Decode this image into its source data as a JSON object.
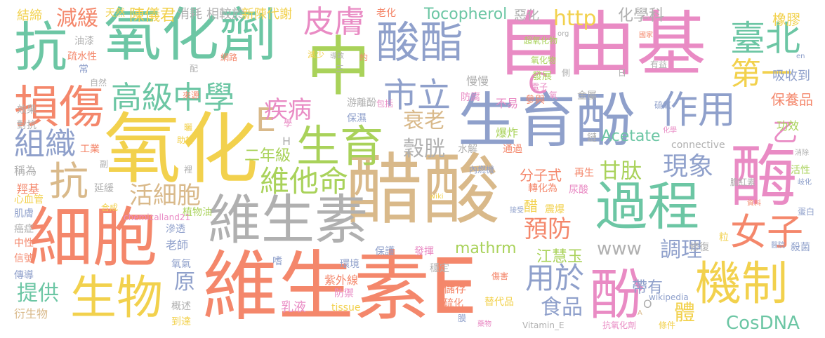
{
  "words": [
    {
      "text": "維生素E",
      "color": "#f4876b"
    },
    {
      "text": "醋酸",
      "color": "#d9b98a"
    },
    {
      "text": "自由基",
      "color": "#e98bc4"
    },
    {
      "text": "氧化",
      "color": "#f2d14d"
    },
    {
      "text": "氧化劑",
      "color": "#6cc6a4"
    },
    {
      "text": "抗",
      "color": "#6cc6a4"
    },
    {
      "text": "生育酚",
      "color": "#8fa0cb"
    },
    {
      "text": "細胞",
      "color": "#f4876b"
    },
    {
      "text": "中",
      "color": "#a9d25a"
    },
    {
      "text": "維生素",
      "color": "#b0b0b0"
    },
    {
      "text": "酶",
      "color": "#e98bc4"
    },
    {
      "text": "過程",
      "color": "#6cc6a4"
    },
    {
      "text": "酸酯",
      "color": "#8fa0cb"
    },
    {
      "text": "生物",
      "color": "#f2d14d"
    },
    {
      "text": "生育",
      "color": "#a9d25a"
    },
    {
      "text": "損傷",
      "color": "#f4876b"
    },
    {
      "text": "機制",
      "color": "#f2d14d"
    },
    {
      "text": "酚",
      "color": "#e98bc4"
    },
    {
      "text": "作用",
      "color": "#8fa0cb"
    },
    {
      "text": "臺北",
      "color": "#6cc6a4"
    },
    {
      "text": "市立",
      "color": "#8fa0cb"
    },
    {
      "text": "高級中學",
      "color": "#6cc6a4"
    },
    {
      "text": "抗",
      "color": "#d9b98a"
    },
    {
      "text": "皮膚",
      "color": "#e98bc4"
    },
    {
      "text": "第一",
      "color": "#f2d14d"
    },
    {
      "text": "女子",
      "color": "#f4876b"
    },
    {
      "text": "組織",
      "color": "#8fa0cb"
    },
    {
      "text": "維他命",
      "color": "#a9d25a"
    },
    {
      "text": "E",
      "color": "#d9b98a"
    },
    {
      "text": "減緩",
      "color": "#f4876b"
    },
    {
      "text": "疾病",
      "color": "#e98bc4"
    },
    {
      "text": "衰老",
      "color": "#d9b98a"
    },
    {
      "text": "用於",
      "color": "#8fa0cb"
    },
    {
      "text": "http",
      "color": "#f2d14d"
    },
    {
      "text": "現象",
      "color": "#8fa0cb"
    },
    {
      "text": "甘肽",
      "color": "#a9d25a"
    },
    {
      "text": "活細胞",
      "color": "#d9b98a"
    },
    {
      "text": "穀胱",
      "color": "#b0b0b0"
    },
    {
      "text": "C",
      "color": "#e98bc4"
    },
    {
      "text": "乙",
      "color": "#e98bc4"
    },
    {
      "text": "預防",
      "color": "#f4876b"
    },
    {
      "text": "調理",
      "color": "#8fa0cb"
    },
    {
      "text": "食品",
      "color": "#8fa0cb"
    },
    {
      "text": "提供",
      "color": "#6cc6a4"
    },
    {
      "text": "原",
      "color": "#8fa0cb"
    },
    {
      "text": "體",
      "color": "#f2d14d"
    },
    {
      "text": "CosDNA",
      "color": "#6cc6a4"
    },
    {
      "text": "Tocopherol",
      "color": "#6cc6a4"
    },
    {
      "text": "化學科",
      "color": "#b0b0b0"
    },
    {
      "text": "陳儀君",
      "color": "#f2d14d"
    },
    {
      "text": "www",
      "color": "#b0b0b0"
    },
    {
      "text": "帶有",
      "color": "#8fa0cb"
    },
    {
      "text": "二年級",
      "color": "#a9d25a"
    },
    {
      "text": "Acetate",
      "color": "#6cc6a4"
    },
    {
      "text": "江慧玉",
      "color": "#a9d25a"
    },
    {
      "text": "mathrm",
      "color": "#a9d25a"
    },
    {
      "text": "分子式",
      "color": "#f4876b"
    },
    {
      "text": "保養品",
      "color": "#f4876b"
    },
    {
      "text": "吸收到",
      "color": "#8fa0cb"
    },
    {
      "text": "橡膠",
      "color": "#f2d14d"
    },
    {
      "text": "新陳代謝",
      "color": "#f2d14d"
    },
    {
      "text": "相較於",
      "color": "#b0b0b0"
    },
    {
      "text": "消耗",
      "color": "#b0b0b0"
    },
    {
      "text": "天然",
      "color": "#f2d14d"
    },
    {
      "text": "結締",
      "color": "#f2d14d"
    },
    {
      "text": "老化",
      "color": "#f4876b"
    },
    {
      "text": "惡化",
      "color": "#b0b0b0"
    },
    {
      "text": "超氧化物",
      "color": "#a9d25a"
    },
    {
      "text": "氧化物",
      "color": "#a9d25a"
    },
    {
      "text": "發展",
      "color": "#a9d25a"
    },
    {
      "text": "慢慢",
      "color": "#b0b0b0"
    },
    {
      "text": "游離酚",
      "color": "#b0b0b0"
    },
    {
      "text": "保濕",
      "color": "#8fa0cb"
    },
    {
      "text": "防腐",
      "color": "#e98bc4"
    },
    {
      "text": "不易",
      "color": "#e98bc4"
    },
    {
      "text": "爆炸",
      "color": "#a9d25a"
    },
    {
      "text": "通過",
      "color": "#f4876b"
    },
    {
      "text": "參與",
      "color": "#f4876b"
    },
    {
      "text": "金屬",
      "color": "#b0b0b0"
    },
    {
      "text": "鏈",
      "color": "#b0b0b0"
    },
    {
      "text": "水解",
      "color": "#b0b0b0"
    },
    {
      "text": "內燃機",
      "color": "#8fa0cb"
    },
    {
      "text": "再生",
      "color": "#f4876b"
    },
    {
      "text": "轉化為",
      "color": "#f4876b"
    },
    {
      "text": "醋",
      "color": "#f2d14d"
    },
    {
      "text": "震爆",
      "color": "#f2d14d"
    },
    {
      "text": "尿酸",
      "color": "#e98bc4"
    },
    {
      "text": "膽紅素",
      "color": "#b0b0b0"
    },
    {
      "text": "功效",
      "color": "#a9d25a"
    },
    {
      "text": "活性",
      "color": "#a9d25a"
    },
    {
      "text": "殺菌",
      "color": "#8fa0cb"
    },
    {
      "text": "修復",
      "color": "#b0b0b0"
    },
    {
      "text": "粒",
      "color": "#f2d14d"
    },
    {
      "text": "效果",
      "color": "#b0b0b0"
    },
    {
      "text": "對抗",
      "color": "#b0b0b0"
    },
    {
      "text": "工業",
      "color": "#f4876b"
    },
    {
      "text": "稱為",
      "color": "#b0b0b0"
    },
    {
      "text": "羥基",
      "color": "#f4876b"
    },
    {
      "text": "心血管",
      "color": "#f2d14d"
    },
    {
      "text": "肌膚",
      "color": "#8fa0cb"
    },
    {
      "text": "癌症",
      "color": "#b0b0b0"
    },
    {
      "text": "中性",
      "color": "#f4876b"
    },
    {
      "text": "信號",
      "color": "#f4876b"
    },
    {
      "text": "傳導",
      "color": "#8fa0cb"
    },
    {
      "text": "衍生物",
      "color": "#d9b98a"
    },
    {
      "text": "延緩",
      "color": "#b0b0b0"
    },
    {
      "text": "老師",
      "color": "#8fa0cb"
    },
    {
      "text": "滲透",
      "color": "#8fa0cb"
    },
    {
      "text": "氧氣",
      "color": "#8fa0cb"
    },
    {
      "text": "概述",
      "color": "#b0b0b0"
    },
    {
      "text": "到達",
      "color": "#f2d14d"
    },
    {
      "text": "乳液",
      "color": "#e98bc4"
    },
    {
      "text": "紫外線",
      "color": "#f4876b"
    },
    {
      "text": "環境",
      "color": "#8fa0cb"
    },
    {
      "text": "防禦",
      "color": "#e98bc4"
    },
    {
      "text": "tissue",
      "color": "#f2d14d"
    },
    {
      "text": "儲存",
      "color": "#f4876b"
    },
    {
      "text": "硫化",
      "color": "#f4876b"
    },
    {
      "text": "替代品",
      "color": "#f2d14d"
    },
    {
      "text": "植物油",
      "color": "#a9d25a"
    },
    {
      "text": "connective",
      "color": "#b0b0b0"
    },
    {
      "text": "chemicalland21",
      "color": "#e98bc4"
    },
    {
      "text": "wikipedia",
      "color": "#8fa0cb"
    },
    {
      "text": "Vitamin_E",
      "color": "#b0b0b0"
    },
    {
      "text": "抗氧化劑",
      "color": "#e98bc4"
    },
    {
      "text": "條件",
      "color": "#f2d14d"
    },
    {
      "text": "穩定",
      "color": "#b0b0b0"
    },
    {
      "text": "發揮",
      "color": "#e98bc4"
    },
    {
      "text": "保護",
      "color": "#8fa0cb"
    },
    {
      "text": "嗜",
      "color": "#8fa0cb"
    },
    {
      "text": "油漆",
      "color": "#b0b0b0"
    },
    {
      "text": "疏水性",
      "color": "#f4876b"
    },
    {
      "text": "常",
      "color": "#8fa0cb"
    },
    {
      "text": "自然",
      "color": "#b0b0b0"
    },
    {
      "text": "減少",
      "color": "#f2d14d"
    },
    {
      "text": "網路",
      "color": "#f4876b"
    },
    {
      "text": "配",
      "color": "#b0b0b0"
    },
    {
      "text": "有益",
      "color": "#b0b0b0"
    },
    {
      "text": "國家",
      "color": "#f4876b"
    },
    {
      "text": "硫氧",
      "color": "#8fa0cb"
    },
    {
      "text": "化學",
      "color": "#e98bc4"
    },
    {
      "text": "消除",
      "color": "#b0b0b0"
    },
    {
      "text": "岐化",
      "color": "#8fa0cb"
    },
    {
      "text": "蛋白",
      "color": "#8fa0cb"
    },
    {
      "text": "醫院",
      "color": "#8fa0cb"
    },
    {
      "text": "藥物",
      "color": "#e98bc4"
    },
    {
      "text": "膜",
      "color": "#8fa0cb"
    },
    {
      "text": "接受",
      "color": "#8fa0cb"
    },
    {
      "text": "助於",
      "color": "#f2d14d"
    },
    {
      "text": "曬",
      "color": "#f2d14d"
    },
    {
      "text": "合成",
      "color": "#f2d14d"
    },
    {
      "text": "副",
      "color": "#b0b0b0"
    },
    {
      "text": "裡",
      "color": "#b0b0b0"
    },
    {
      "text": "資料",
      "color": "#f4876b"
    },
    {
      "text": "傷害",
      "color": "#f4876b"
    },
    {
      "text": "包括",
      "color": "#e98bc4"
    },
    {
      "text": "導致",
      "color": "#b0b0b0"
    },
    {
      "text": "約",
      "color": "#f4876b"
    },
    {
      "text": "學",
      "color": "#e98bc4"
    },
    {
      "text": "來源",
      "color": "#f4876b"
    },
    {
      "text": "三",
      "color": "#b0b0b0"
    },
    {
      "text": "日",
      "color": "#b0b0b0"
    },
    {
      "text": "氧",
      "color": "#e98bc4"
    },
    {
      "text": "電子",
      "color": "#e98bc4"
    },
    {
      "text": "側",
      "color": "#b0b0b0"
    },
    {
      "text": "en",
      "color": "#8fa0cb"
    },
    {
      "text": "org",
      "color": "#b0b0b0"
    },
    {
      "text": "wiki",
      "color": "#f2d14d"
    },
    {
      "text": "H",
      "color": "#b0b0b0"
    },
    {
      "text": "O",
      "color": "#b0b0b0"
    },
    {
      "text": "A",
      "color": "#d9b98a"
    }
  ]
}
